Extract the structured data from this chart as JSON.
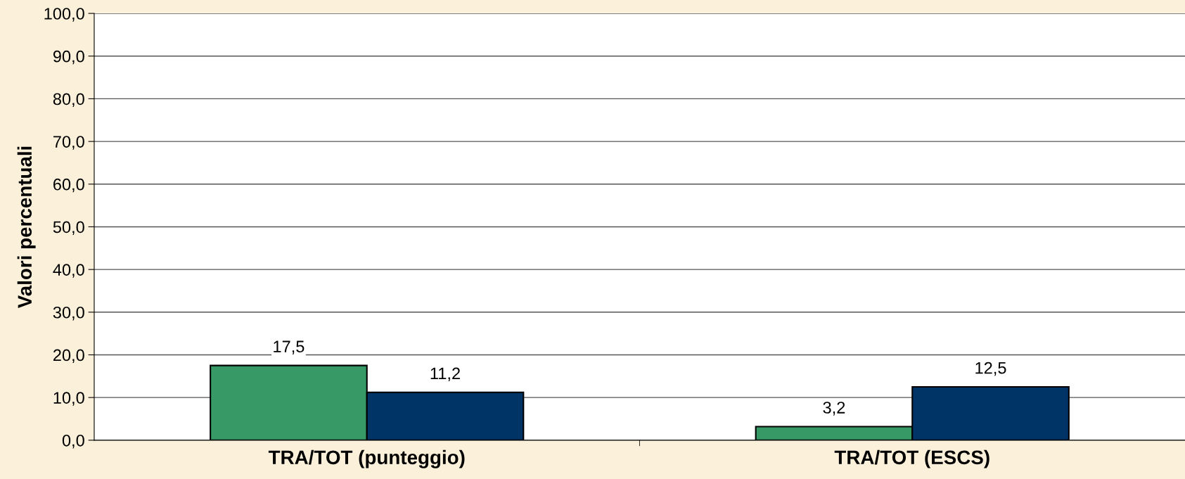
{
  "chart_data": {
    "type": "bar",
    "ylabel": "Valori percentuali",
    "categories": [
      "TRA/TOT (punteggio)",
      "TRA/TOT (ESCS)"
    ],
    "series": [
      {
        "color": "#379966",
        "values": [
          17.5,
          3.2
        ],
        "value_labels": [
          "17,5",
          "3,2"
        ]
      },
      {
        "color": "#003366",
        "values": [
          11.2,
          12.5
        ],
        "value_labels": [
          "11,2",
          "12,5"
        ]
      }
    ],
    "ylim": [
      0,
      100
    ],
    "yticks": [
      {
        "value": 0,
        "label": "0,0"
      },
      {
        "value": 10,
        "label": "10,0"
      },
      {
        "value": 20,
        "label": "20,0"
      },
      {
        "value": 30,
        "label": "30,0"
      },
      {
        "value": 40,
        "label": "40,0"
      },
      {
        "value": 50,
        "label": "50,0"
      },
      {
        "value": 60,
        "label": "60,0"
      },
      {
        "value": 70,
        "label": "70,0"
      },
      {
        "value": 80,
        "label": "80,0"
      },
      {
        "value": 90,
        "label": "90,0"
      },
      {
        "value": 100,
        "label": "100,0"
      }
    ],
    "grid": "y"
  }
}
